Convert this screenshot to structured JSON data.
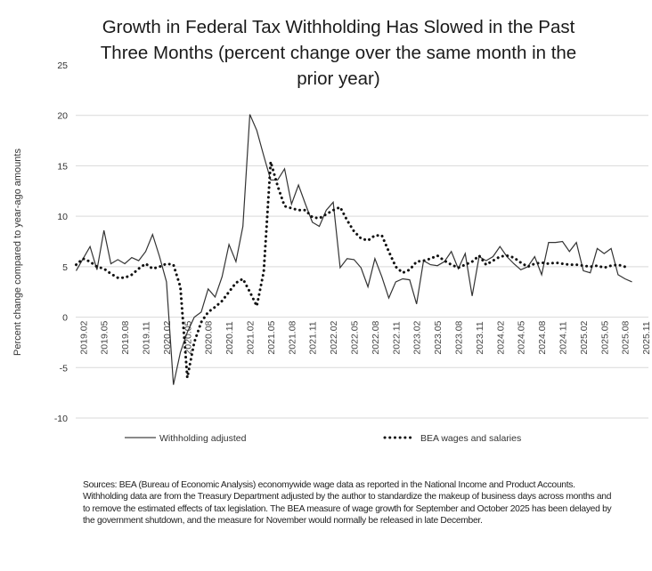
{
  "chart_data": {
    "type": "line",
    "title": "Growth in Federal Tax Withholding Has Slowed in the Past Three Months (percent change over the same month in the prior year)",
    "title_lines": [
      "Growth in Federal Tax Withholding Has Slowed in the Past",
      "Three Months (percent change over the same month in the",
      "prior year)"
    ],
    "xlabel": "",
    "ylabel": "Percent change compared to year-ago amounts",
    "ylim": [
      -10,
      25
    ],
    "yticks": [
      -10,
      -5,
      0,
      5,
      10,
      15,
      20,
      25
    ],
    "grid": true,
    "legend_position": "bottom",
    "x_start": "2019.01",
    "x_tick_labels": [
      "2019.02",
      "2019.05",
      "2019.08",
      "2019.11",
      "2020.02",
      "2020.05",
      "2020.08",
      "2020.11",
      "2021.02",
      "2021.05",
      "2021.08",
      "2021.11",
      "2022.02",
      "2022.05",
      "2022.08",
      "2022.11",
      "2023.02",
      "2023.05",
      "2023.08",
      "2023.11",
      "2024.02",
      "2024.05",
      "2024.08",
      "2024.11",
      "2025.02",
      "2025.05",
      "2025.08",
      "2025.11"
    ],
    "series": [
      {
        "name": "Withholding adjusted",
        "style": "solid",
        "color": "#333333",
        "values": [
          4.6,
          5.8,
          7.0,
          4.7,
          8.6,
          5.3,
          5.7,
          5.3,
          5.9,
          5.6,
          6.5,
          8.2,
          6.0,
          3.5,
          -6.7,
          -3.5,
          -1.5,
          0.0,
          0.5,
          2.8,
          2.0,
          4.0,
          7.2,
          5.5,
          9.0,
          20.1,
          18.5,
          16.0,
          13.6,
          13.6,
          14.7,
          11.2,
          13.1,
          11.2,
          9.4,
          9.0,
          10.6,
          11.4,
          4.9,
          5.8,
          5.7,
          4.9,
          3.0,
          5.8,
          4.0,
          1.9,
          3.5,
          3.8,
          3.7,
          1.3,
          5.6,
          5.2,
          5.1,
          5.5,
          6.5,
          4.8,
          6.3,
          2.1,
          6.0,
          5.6,
          6.0,
          7.0,
          6.0,
          5.3,
          4.7,
          5.0,
          6.0,
          4.2,
          7.4,
          7.4,
          7.5,
          6.5,
          7.4,
          4.6,
          4.4,
          6.8,
          6.3,
          6.8,
          4.2,
          3.8,
          3.5
        ]
      },
      {
        "name": "BEA wages and salaries",
        "style": "dotted",
        "color": "#111111",
        "values": [
          5.2,
          5.8,
          5.5,
          5.0,
          4.8,
          4.3,
          3.9,
          3.9,
          4.2,
          4.8,
          5.3,
          4.8,
          5.0,
          5.3,
          5.2,
          3.0,
          -6.0,
          -2.5,
          -0.5,
          0.5,
          1.0,
          1.6,
          2.5,
          3.4,
          3.8,
          2.5,
          1.1,
          4.5,
          15.4,
          13.0,
          11.0,
          10.8,
          10.6,
          10.6,
          9.9,
          9.8,
          10.2,
          10.6,
          10.9,
          9.6,
          8.5,
          7.8,
          7.6,
          8.1,
          8.1,
          6.5,
          5.0,
          4.4,
          4.7,
          5.5,
          5.6,
          5.8,
          6.1,
          5.6,
          5.2,
          4.9,
          5.2,
          5.5,
          6.1,
          5.2,
          5.6,
          6.0,
          6.1,
          5.9,
          5.4,
          5.0,
          5.3,
          5.4,
          5.3,
          5.4,
          5.3,
          5.2,
          5.2,
          5.1,
          5.0,
          5.1,
          4.9,
          5.1,
          5.2,
          5.0
        ]
      }
    ]
  },
  "legend": {
    "withholding": "Withholding adjusted",
    "bea": "BEA wages and salaries"
  },
  "source_note": "Sources:  BEA (Bureau of Economic Analysis) economywide wage data as reported in the National Income and Product Accounts. Withholding data are from the Treasury Department adjusted by the author to standardize the makeup of business days across months and to remove the estimated effects of tax legislation. The BEA measure of wage growth for September and October 2025 has been delayed by the government shutdown, and the measure for November would normally be released in late December."
}
